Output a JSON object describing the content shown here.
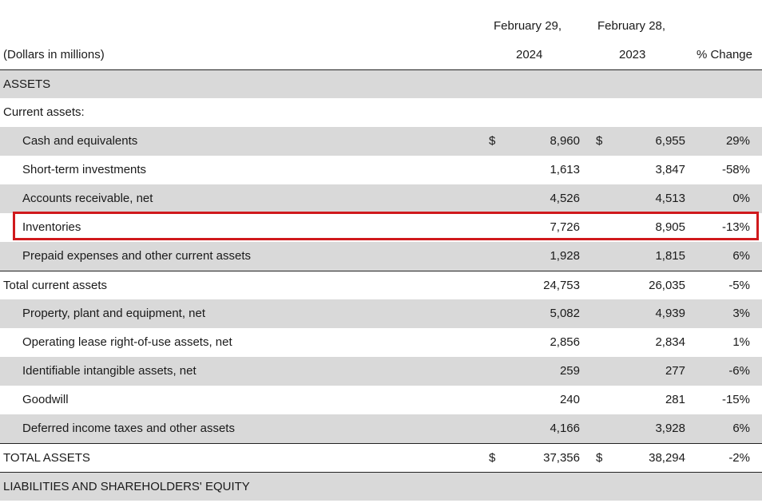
{
  "header": {
    "units": "(Dollars in millions)",
    "col1_line1": "February 29,",
    "col1_line2": "2024",
    "col2_line1": "February 28,",
    "col2_line2": "2023",
    "col3": "% Change"
  },
  "rows": [
    {
      "label": "ASSETS",
      "indent": 0,
      "shaded": true,
      "border_top": true,
      "sym_a": "",
      "a": "",
      "sym_b": "",
      "b": "",
      "pct": ""
    },
    {
      "label": "Current assets:",
      "indent": 0,
      "shaded": false,
      "border_top": false,
      "sym_a": "",
      "a": "",
      "sym_b": "",
      "b": "",
      "pct": ""
    },
    {
      "label": "Cash and equivalents",
      "indent": 1,
      "shaded": true,
      "border_top": false,
      "sym_a": "$",
      "a": "8,960",
      "sym_b": "$",
      "b": "6,955",
      "pct": "29%"
    },
    {
      "label": "Short-term investments",
      "indent": 1,
      "shaded": false,
      "border_top": false,
      "sym_a": "",
      "a": "1,613",
      "sym_b": "",
      "b": "3,847",
      "pct": "-58%"
    },
    {
      "label": "Accounts receivable, net",
      "indent": 1,
      "shaded": true,
      "border_top": false,
      "sym_a": "",
      "a": "4,526",
      "sym_b": "",
      "b": "4,513",
      "pct": "0%"
    },
    {
      "label": "Inventories",
      "indent": 1,
      "shaded": false,
      "border_top": false,
      "sym_a": "",
      "a": "7,726",
      "sym_b": "",
      "b": "8,905",
      "pct": "-13%"
    },
    {
      "label": "Prepaid expenses and other current assets",
      "indent": 1,
      "shaded": true,
      "border_top": false,
      "sym_a": "",
      "a": "1,928",
      "sym_b": "",
      "b": "1,815",
      "pct": "6%"
    },
    {
      "label": "Total current assets",
      "indent": 0,
      "shaded": false,
      "border_top": true,
      "sym_a": "",
      "a": "24,753",
      "sym_b": "",
      "b": "26,035",
      "pct": "-5%"
    },
    {
      "label": "Property, plant and equipment, net",
      "indent": 1,
      "shaded": true,
      "border_top": false,
      "sym_a": "",
      "a": "5,082",
      "sym_b": "",
      "b": "4,939",
      "pct": "3%"
    },
    {
      "label": "Operating lease right-of-use assets, net",
      "indent": 1,
      "shaded": false,
      "border_top": false,
      "sym_a": "",
      "a": "2,856",
      "sym_b": "",
      "b": "2,834",
      "pct": "1%"
    },
    {
      "label": "Identifiable intangible assets, net",
      "indent": 1,
      "shaded": true,
      "border_top": false,
      "sym_a": "",
      "a": "259",
      "sym_b": "",
      "b": "277",
      "pct": "-6%"
    },
    {
      "label": "Goodwill",
      "indent": 1,
      "shaded": false,
      "border_top": false,
      "sym_a": "",
      "a": "240",
      "sym_b": "",
      "b": "281",
      "pct": "-15%"
    },
    {
      "label": "Deferred income taxes and other assets",
      "indent": 1,
      "shaded": true,
      "border_top": false,
      "sym_a": "",
      "a": "4,166",
      "sym_b": "",
      "b": "3,928",
      "pct": "6%"
    },
    {
      "label": "TOTAL ASSETS",
      "indent": 0,
      "shaded": false,
      "border_top": true,
      "sym_a": "$",
      "a": "37,356",
      "sym_b": "$",
      "b": "38,294",
      "pct": "-2%"
    },
    {
      "label": "LIABILITIES AND SHAREHOLDERS' EQUITY",
      "indent": 0,
      "shaded": true,
      "border_top": true,
      "sym_a": "",
      "a": "",
      "sym_b": "",
      "b": "",
      "pct": ""
    }
  ],
  "highlight": {
    "row_index": 5,
    "color": "#d0191c"
  },
  "colors": {
    "shade": "#d9d9d9",
    "text": "#1a1a1a",
    "rule": "#222222"
  }
}
